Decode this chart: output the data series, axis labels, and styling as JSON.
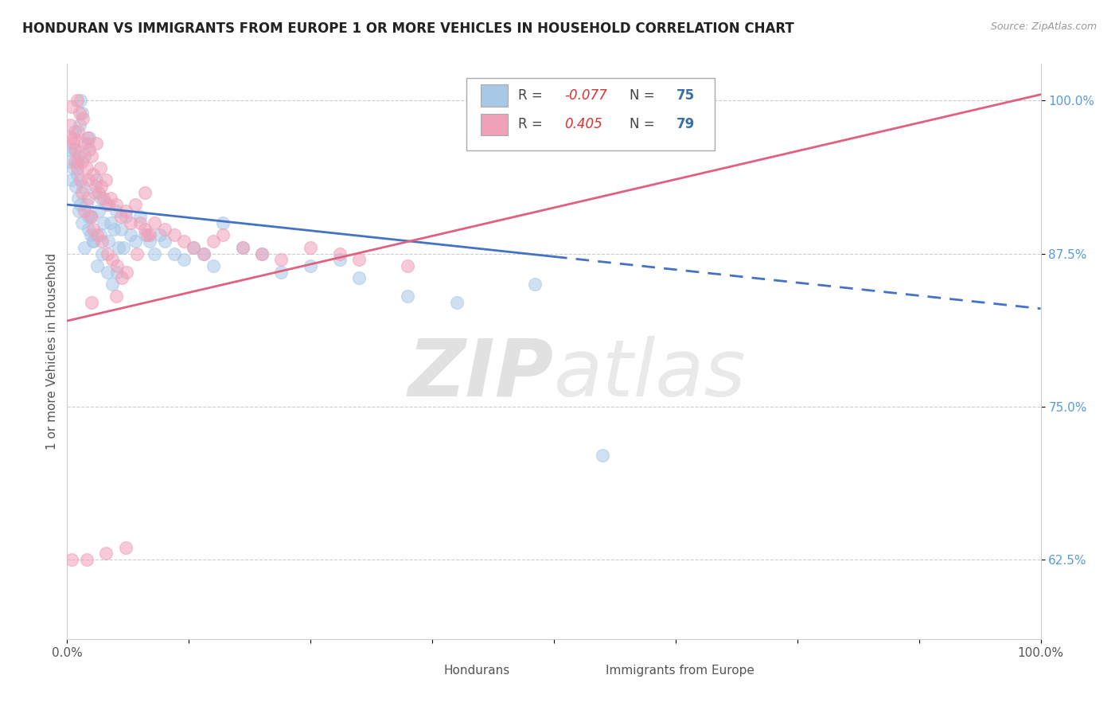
{
  "title": "HONDURAN VS IMMIGRANTS FROM EUROPE 1 OR MORE VEHICLES IN HOUSEHOLD CORRELATION CHART",
  "source": "Source: ZipAtlas.com",
  "ylabel": "1 or more Vehicles in Household",
  "legend_labels": [
    "Hondurans",
    "Immigrants from Europe"
  ],
  "blue_R": -0.077,
  "blue_N": 75,
  "pink_R": 0.405,
  "pink_N": 79,
  "blue_color": "#A8C8E8",
  "pink_color": "#F0A0B8",
  "blue_line_color": "#4472C4",
  "pink_line_color": "#E06080",
  "xlim": [
    0.0,
    100.0
  ],
  "ylim": [
    56.0,
    103.0
  ],
  "yticks": [
    62.5,
    75.0,
    87.5,
    100.0
  ],
  "xtick_labels_pos": [
    0.0,
    100.0
  ],
  "xtick_labels": [
    "0.0%",
    "100.0%"
  ],
  "ytick_labels": [
    "62.5%",
    "75.0%",
    "87.5%",
    "100.0%"
  ],
  "blue_line_x0": 0,
  "blue_line_y0": 91.5,
  "blue_line_x1": 100,
  "blue_line_y1": 83.0,
  "pink_line_x0": 0,
  "pink_line_y0": 82.0,
  "pink_line_x1": 100,
  "pink_line_y1": 100.5,
  "blue_solid_end": 50,
  "watermark_text": "ZIPatlas",
  "watermark_fontsize": 72
}
